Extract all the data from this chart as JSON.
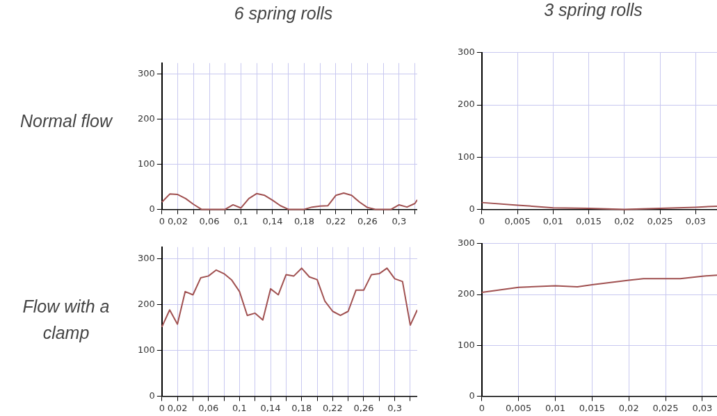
{
  "chart_data": [
    {
      "type": "line",
      "title": "6 spring rolls",
      "ylabel": "Normal flow",
      "color": "#a05050",
      "grid": true,
      "x": [
        0,
        0.01,
        0.02,
        0.03,
        0.04,
        0.05,
        0.06,
        0.07,
        0.08,
        0.09,
        0.1,
        0.11,
        0.12,
        0.13,
        0.14,
        0.15,
        0.16,
        0.17,
        0.18,
        0.19,
        0.2,
        0.21,
        0.22,
        0.23,
        0.24,
        0.25,
        0.26,
        0.27,
        0.28,
        0.29,
        0.3,
        0.31,
        0.32,
        0.323
      ],
      "values": [
        16,
        34,
        33,
        24,
        11,
        0,
        0,
        0,
        0,
        10,
        3,
        24,
        35,
        31,
        20,
        8,
        0,
        0,
        0,
        5,
        7,
        8,
        31,
        36,
        31,
        16,
        4,
        0,
        0,
        0,
        10,
        5,
        13,
        21
      ],
      "xlim": [
        0,
        0.323
      ],
      "ylim": [
        0,
        325
      ],
      "xticks": [
        {
          "value": 0,
          "label": "0"
        },
        {
          "value": 0.02,
          "label": "0,02"
        },
        {
          "value": 0.04,
          "label": null
        },
        {
          "value": 0.06,
          "label": "0,06"
        },
        {
          "value": 0.08,
          "label": null
        },
        {
          "value": 0.1,
          "label": "0,1"
        },
        {
          "value": 0.12,
          "label": null
        },
        {
          "value": 0.14,
          "label": "0,14"
        },
        {
          "value": 0.16,
          "label": null
        },
        {
          "value": 0.18,
          "label": "0,18"
        },
        {
          "value": 0.2,
          "label": null
        },
        {
          "value": 0.22,
          "label": "0,22"
        },
        {
          "value": 0.24,
          "label": null
        },
        {
          "value": 0.26,
          "label": "0,26"
        },
        {
          "value": 0.28,
          "label": null
        },
        {
          "value": 0.3,
          "label": "0,3"
        },
        {
          "value": 0.32,
          "label": null
        }
      ],
      "yticks": [
        0,
        100,
        200,
        300
      ]
    },
    {
      "type": "line",
      "title": "3 spring rolls",
      "color": "#a05050",
      "grid": true,
      "x": [
        0,
        0.005,
        0.01,
        0.015,
        0.02,
        0.025,
        0.03,
        0.033
      ],
      "values": [
        13,
        8,
        3,
        2,
        0,
        2,
        4,
        6
      ],
      "xlim": [
        0,
        0.033
      ],
      "ylim": [
        0,
        300
      ],
      "xticks": [
        {
          "value": 0,
          "label": "0"
        },
        {
          "value": 0.005,
          "label": "0,005"
        },
        {
          "value": 0.01,
          "label": "0,01"
        },
        {
          "value": 0.015,
          "label": "0,015"
        },
        {
          "value": 0.02,
          "label": "0,02"
        },
        {
          "value": 0.025,
          "label": "0,025"
        },
        {
          "value": 0.03,
          "label": "0,03"
        }
      ],
      "yticks": [
        0,
        100,
        200,
        300
      ]
    },
    {
      "type": "line",
      "ylabel": "Flow with a clamp",
      "color": "#a05050",
      "grid": true,
      "x": [
        0,
        0.01,
        0.02,
        0.03,
        0.04,
        0.05,
        0.06,
        0.07,
        0.08,
        0.09,
        0.1,
        0.11,
        0.12,
        0.13,
        0.14,
        0.15,
        0.16,
        0.17,
        0.18,
        0.19,
        0.2,
        0.21,
        0.22,
        0.23,
        0.24,
        0.25,
        0.26,
        0.27,
        0.28,
        0.29,
        0.3,
        0.31,
        0.32,
        0.329
      ],
      "values": [
        151,
        188,
        157,
        228,
        221,
        258,
        262,
        275,
        267,
        253,
        228,
        176,
        181,
        166,
        234,
        221,
        265,
        262,
        279,
        260,
        254,
        207,
        185,
        176,
        185,
        231,
        231,
        265,
        267,
        279,
        256,
        250,
        155,
        188
      ],
      "xlim": [
        0,
        0.329
      ],
      "ylim": [
        0,
        325
      ],
      "xticks": [
        {
          "value": 0,
          "label": "0"
        },
        {
          "value": 0.02,
          "label": "0,02"
        },
        {
          "value": 0.04,
          "label": null
        },
        {
          "value": 0.06,
          "label": "0,06"
        },
        {
          "value": 0.08,
          "label": null
        },
        {
          "value": 0.1,
          "label": "0,1"
        },
        {
          "value": 0.12,
          "label": null
        },
        {
          "value": 0.14,
          "label": "0,14"
        },
        {
          "value": 0.16,
          "label": null
        },
        {
          "value": 0.18,
          "label": "0,18"
        },
        {
          "value": 0.2,
          "label": null
        },
        {
          "value": 0.22,
          "label": "0,22"
        },
        {
          "value": 0.24,
          "label": null
        },
        {
          "value": 0.26,
          "label": "0,26"
        },
        {
          "value": 0.28,
          "label": null
        },
        {
          "value": 0.3,
          "label": "0,3"
        },
        {
          "value": 0.32,
          "label": null
        }
      ],
      "yticks": [
        0,
        100,
        200,
        300
      ]
    },
    {
      "type": "line",
      "color": "#a05050",
      "grid": true,
      "x": [
        0,
        0.005,
        0.01,
        0.013,
        0.015,
        0.02,
        0.022,
        0.025,
        0.027,
        0.03,
        0.032
      ],
      "values": [
        204,
        214,
        217,
        215,
        219,
        228,
        231,
        231,
        231,
        236,
        238
      ],
      "xlim": [
        0,
        0.032
      ],
      "ylim": [
        0,
        300
      ],
      "xticks": [
        {
          "value": 0,
          "label": "0"
        },
        {
          "value": 0.005,
          "label": "0,005"
        },
        {
          "value": 0.01,
          "label": "0,01"
        },
        {
          "value": 0.015,
          "label": "0,015"
        },
        {
          "value": 0.02,
          "label": "0,02"
        },
        {
          "value": 0.025,
          "label": "0,025"
        },
        {
          "value": 0.03,
          "label": "0,03"
        }
      ],
      "yticks": [
        0,
        100,
        200,
        300
      ]
    }
  ]
}
